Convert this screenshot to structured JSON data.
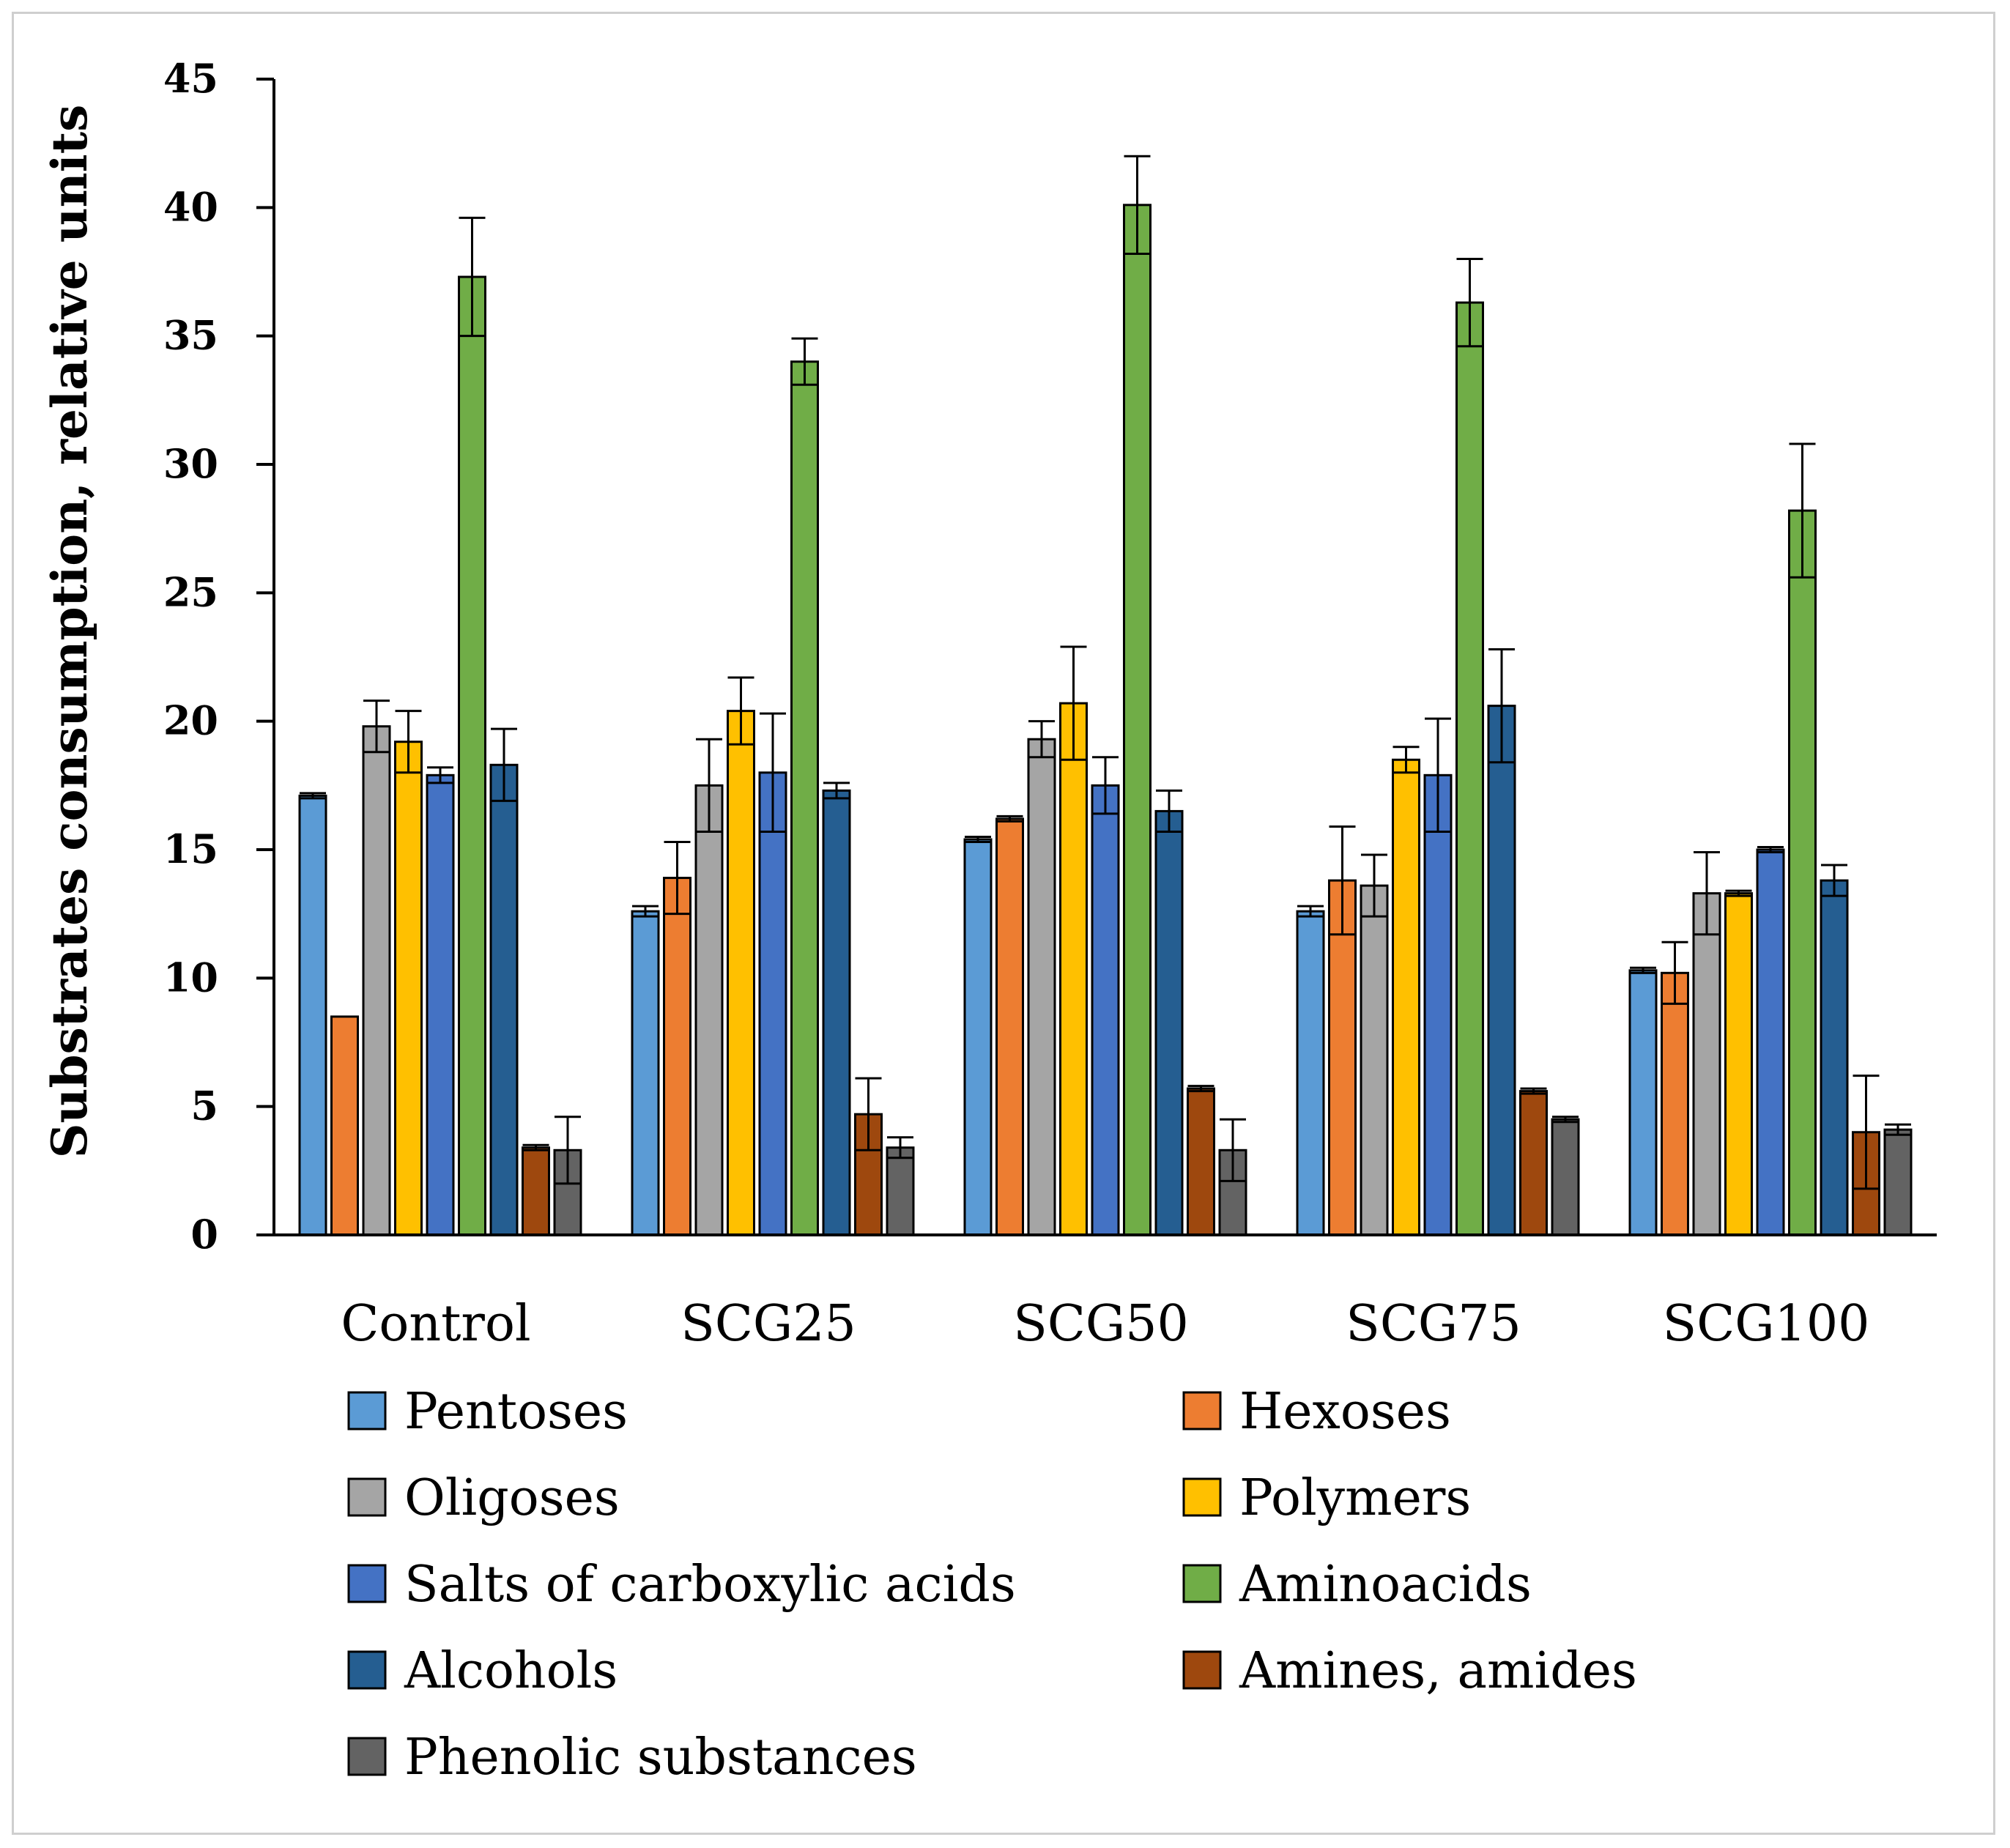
{
  "chart_data": {
    "type": "bar",
    "title": "",
    "xlabel": "",
    "ylabel": "Substrates consumption, relative units",
    "ylim": [
      0,
      45
    ],
    "yticks": [
      0,
      5,
      10,
      15,
      20,
      25,
      30,
      35,
      40,
      45
    ],
    "grid": false,
    "legend_position": "bottom",
    "categories": [
      "Control",
      "SCG25",
      "SCG50",
      "SCG75",
      "SCG100"
    ],
    "series": [
      {
        "name": "Pentoses",
        "color": "#5B9BD5",
        "values": [
          17.1,
          12.6,
          15.4,
          12.6,
          10.3
        ],
        "errors": [
          0.1,
          0.2,
          0.1,
          0.2,
          0.1
        ]
      },
      {
        "name": "Hexoses",
        "color": "#ED7D31",
        "values": [
          8.5,
          13.9,
          16.2,
          13.8,
          10.2
        ],
        "errors": [
          0.0,
          1.4,
          0.1,
          2.1,
          1.2
        ]
      },
      {
        "name": "Oligoses",
        "color": "#A5A5A5",
        "values": [
          19.8,
          17.5,
          19.3,
          13.6,
          13.3
        ],
        "errors": [
          1.0,
          1.8,
          0.7,
          1.2,
          1.6
        ]
      },
      {
        "name": "Polymers",
        "color": "#FFC000",
        "values": [
          19.2,
          20.4,
          20.7,
          18.5,
          13.3
        ],
        "errors": [
          1.2,
          1.3,
          2.2,
          0.5,
          0.1
        ]
      },
      {
        "name": "Salts of carboxylic acids",
        "color": "#4472C4",
        "values": [
          17.9,
          18.0,
          17.5,
          17.9,
          15.0
        ],
        "errors": [
          0.3,
          2.3,
          1.1,
          2.2,
          0.1
        ]
      },
      {
        "name": "Aminoacids",
        "color": "#70AD47",
        "values": [
          37.3,
          34.0,
          40.1,
          36.3,
          28.2
        ],
        "errors": [
          2.3,
          0.9,
          1.9,
          1.7,
          2.6
        ]
      },
      {
        "name": "Alcohols",
        "color": "#255E91",
        "values": [
          18.3,
          17.3,
          16.5,
          20.6,
          13.8
        ],
        "errors": [
          1.4,
          0.3,
          0.8,
          2.2,
          0.6
        ]
      },
      {
        "name": "Amines, amides",
        "color": "#9E480E",
        "values": [
          3.4,
          4.7,
          5.7,
          5.6,
          4.0
        ],
        "errors": [
          0.1,
          1.4,
          0.1,
          0.1,
          2.2
        ]
      },
      {
        "name": "Phenolic substances",
        "color": "#636363",
        "values": [
          3.3,
          3.4,
          3.3,
          4.5,
          4.1
        ],
        "errors": [
          1.3,
          0.4,
          1.2,
          0.1,
          0.2
        ]
      }
    ]
  }
}
